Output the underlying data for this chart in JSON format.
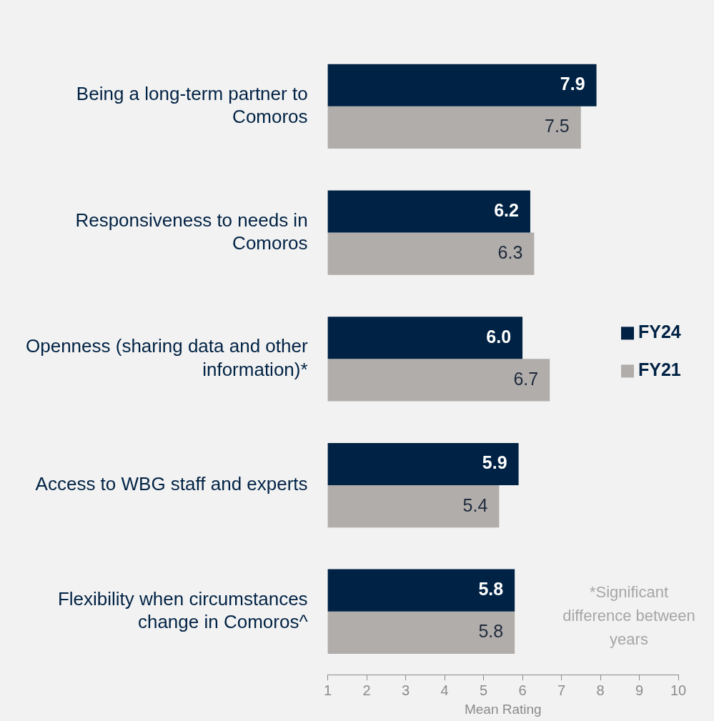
{
  "chart_data": {
    "type": "bar",
    "orientation": "horizontal",
    "xlabel": "Mean Rating",
    "categories": [
      "Being a long-term partner to Comoros",
      "Responsiveness to needs in Comoros",
      "Openness (sharing data and other information)*",
      "Access to WBG staff and experts",
      "Flexibility when circumstances change in Comoros^"
    ],
    "series": [
      {
        "name": "FY24",
        "color": "#002244",
        "values": [
          7.9,
          6.2,
          6.0,
          5.9,
          5.8
        ],
        "value_labels": [
          "7.9",
          "6.2",
          "6.0",
          "5.9",
          "5.8"
        ]
      },
      {
        "name": "FY21",
        "color": "#b0adab",
        "values": [
          7.5,
          6.3,
          6.7,
          5.4,
          5.8
        ],
        "value_labels": [
          "7.5",
          "6.3",
          "6.7",
          "5.4",
          "5.8"
        ]
      }
    ],
    "xlim": [
      1,
      10
    ],
    "xticks": [
      1,
      2,
      3,
      4,
      5,
      6,
      7,
      8,
      9,
      10
    ],
    "grid": false,
    "legend": "right",
    "annotations": [
      "*Significant difference between years"
    ]
  }
}
